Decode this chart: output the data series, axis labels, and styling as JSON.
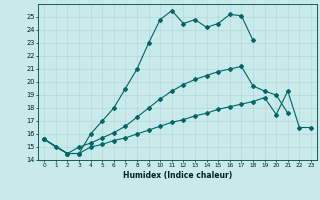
{
  "xlabel": "Humidex (Indice chaleur)",
  "bg_color": "#c8eaea",
  "grid_color": "#b8d8d8",
  "line_color": "#006666",
  "xlim": [
    -0.5,
    23.5
  ],
  "ylim": [
    14,
    26
  ],
  "yticks": [
    14,
    15,
    16,
    17,
    18,
    19,
    20,
    21,
    22,
    23,
    24,
    25
  ],
  "xticks": [
    0,
    1,
    2,
    3,
    4,
    5,
    6,
    7,
    8,
    9,
    10,
    11,
    12,
    13,
    14,
    15,
    16,
    17,
    18,
    19,
    20,
    21,
    22,
    23
  ],
  "line1_x": [
    0,
    1,
    2,
    3,
    4,
    5,
    6,
    7,
    8,
    9,
    10,
    11,
    12,
    13,
    14,
    15,
    16,
    17,
    18
  ],
  "line1_y": [
    15.6,
    15.0,
    14.5,
    14.5,
    16.0,
    17.0,
    18.0,
    19.5,
    21.0,
    23.0,
    24.8,
    25.5,
    24.5,
    24.8,
    24.2,
    24.5,
    25.2,
    25.1,
    23.2
  ],
  "line2_x": [
    0,
    2,
    3,
    4,
    5,
    6,
    7,
    8,
    9,
    10,
    11,
    12,
    13,
    14,
    15,
    16,
    17,
    18,
    19,
    20,
    21
  ],
  "line2_y": [
    15.6,
    14.5,
    15.0,
    15.3,
    15.7,
    16.1,
    16.6,
    17.3,
    18.0,
    18.7,
    19.3,
    19.8,
    20.2,
    20.5,
    20.8,
    21.0,
    21.2,
    19.7,
    19.3,
    19.0,
    17.6
  ],
  "line3_x": [
    0,
    2,
    3,
    4,
    5,
    6,
    7,
    8,
    9,
    10,
    11,
    12,
    13,
    14,
    15,
    16,
    17,
    18,
    19,
    20,
    21,
    22,
    23
  ],
  "line3_y": [
    15.6,
    14.5,
    14.5,
    15.0,
    15.2,
    15.5,
    15.7,
    16.0,
    16.3,
    16.6,
    16.9,
    17.1,
    17.4,
    17.6,
    17.9,
    18.1,
    18.3,
    18.5,
    18.8,
    17.5,
    19.3,
    16.5,
    16.5
  ]
}
